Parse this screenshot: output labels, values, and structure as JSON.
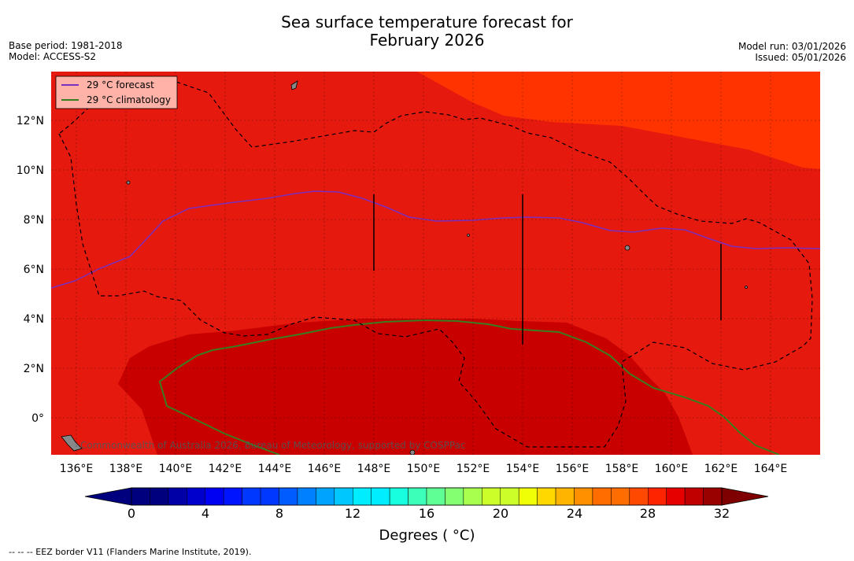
{
  "header": {
    "title_line1": "Sea surface temperature forecast for",
    "title_line2": "February 2026",
    "base_period": "Base period: 1981-2018",
    "model": "Model: ACCESS-S2",
    "model_run": "Model run: 03/01/2026",
    "issued": "Issued: 05/01/2026"
  },
  "map": {
    "legend": [
      {
        "label": "29 °C  forecast",
        "color": "#7b2fbf"
      },
      {
        "label": "29 °C  climatology",
        "color": "#3a7d1e"
      }
    ],
    "lon_ticks": [
      "136°E",
      "138°E",
      "140°E",
      "142°E",
      "144°E",
      "146°E",
      "148°E",
      "150°E",
      "152°E",
      "154°E",
      "156°E",
      "158°E",
      "160°E",
      "162°E",
      "164°E"
    ],
    "lat_ticks": [
      "12°N",
      "10°N",
      "8°N",
      "6°N",
      "4°N",
      "2°N",
      "0°"
    ],
    "attribution": "Commonwealth of Australia 2026, Bureau of Meteorology, supported by COSPPac",
    "colors": {
      "t28_29": "#e6190f",
      "t29_30": "#c80000",
      "t27_28": "#ff3300",
      "eez": "#000000"
    }
  },
  "colorbar": {
    "ticks": [
      "0",
      "4",
      "8",
      "12",
      "16",
      "20",
      "24",
      "28",
      "32"
    ],
    "label": "Degrees ( °C)",
    "colors": [
      "#00007f",
      "#0000a6",
      "#0000cc",
      "#0000f2",
      "#0014ff",
      "#0038ff",
      "#005cff",
      "#0080ff",
      "#00a4ff",
      "#00c8ff",
      "#00ecff",
      "#18ffdf",
      "#3cffba",
      "#60ff96",
      "#84ff72",
      "#a8ff4e",
      "#ccff2a",
      "#f0ff06",
      "#ffd800",
      "#ffb400",
      "#ff9000",
      "#ff6c00",
      "#ff4800",
      "#ff2400",
      "#e60000",
      "#c00000",
      "#990000"
    ]
  },
  "footer": "--  --  -- EEZ border V11 (Flanders Marine Institute, 2019)."
}
